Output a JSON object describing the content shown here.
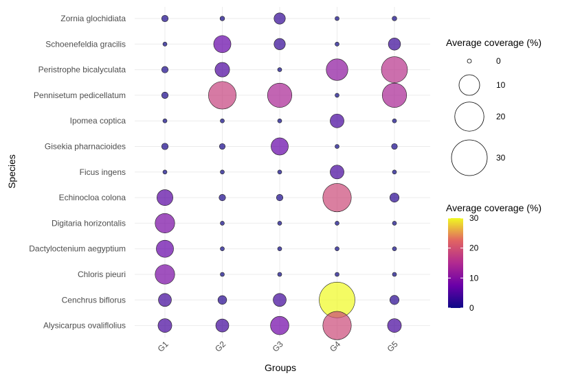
{
  "chart_data": {
    "type": "scatter",
    "subtype": "bubble",
    "xlabel": "Groups",
    "ylabel": "Species",
    "categories_x": [
      "G1",
      "G2",
      "G3",
      "G4",
      "G5"
    ],
    "categories_y": [
      "Zornia glochidiata",
      "Schoenefeldia gracilis",
      "Peristrophe bicalyculata",
      "Pennisetum pedicellatum",
      "Ipomea coptica",
      "Gisekia pharnacioides",
      "Ficus ingens",
      "Echinocloa colona",
      "Digitaria horizontalis",
      "Dactyloctenium aegyptium",
      "Chloris pieuri",
      "Cenchrus biflorus",
      "Alysicarpus ovaliflolius"
    ],
    "values": [
      [
        1,
        0.5,
        3,
        0.3,
        0.5
      ],
      [
        0.2,
        7,
        3,
        0.2,
        3.5
      ],
      [
        1,
        5,
        0.2,
        11,
        16
      ],
      [
        1,
        18,
        14,
        0.2,
        14
      ],
      [
        0.2,
        0.2,
        0.2,
        4.5,
        0.2
      ],
      [
        1,
        0.8,
        7,
        0.2,
        0.8
      ],
      [
        0.2,
        0.2,
        0.2,
        4.5,
        0.2
      ],
      [
        6,
        1,
        1,
        19,
        2
      ],
      [
        9,
        0.2,
        0.2,
        0.2,
        0.2
      ],
      [
        7,
        0.2,
        0.2,
        0.2,
        0.2
      ],
      [
        9,
        0.2,
        0.2,
        0.2,
        0.2
      ],
      [
        4,
        1.8,
        4,
        30,
        2
      ],
      [
        4.5,
        4,
        8,
        19,
        4.5
      ]
    ],
    "size_legend": {
      "title": "Average coverage (%)",
      "breaks": [
        0,
        10,
        20,
        30
      ]
    },
    "color_legend": {
      "title": "Average coverage (%)",
      "range": [
        0,
        30
      ],
      "breaks": [
        0,
        10,
        20,
        30
      ],
      "colormap": "plasma"
    },
    "grid": true
  }
}
